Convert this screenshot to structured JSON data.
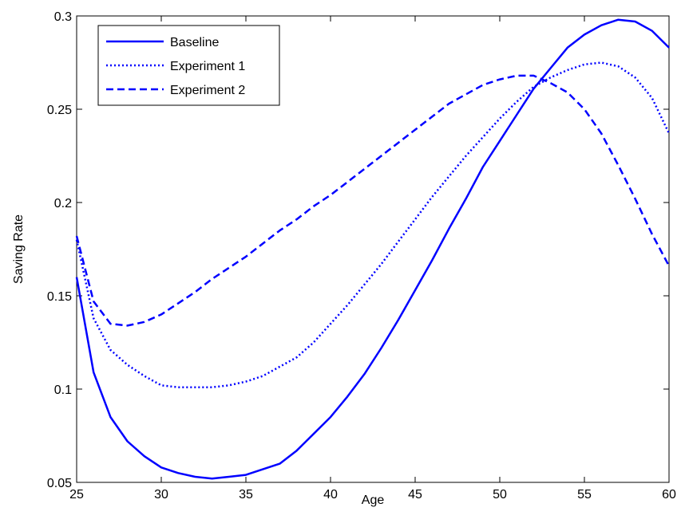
{
  "chart_data": {
    "type": "line",
    "title": "",
    "xlabel": "Age",
    "ylabel": "Saving Rate",
    "xlim": [
      25,
      60
    ],
    "ylim": [
      0.05,
      0.3
    ],
    "xticks": [
      25,
      30,
      35,
      40,
      45,
      50,
      55,
      60
    ],
    "xtick_labels": [
      "25",
      "30",
      "35",
      "40",
      "45",
      "50",
      "55",
      "60"
    ],
    "yticks": [
      0.05,
      0.1,
      0.15,
      0.2,
      0.25,
      0.3
    ],
    "ytick_labels": [
      "0.05",
      "0.1",
      "0.15",
      "0.2",
      "0.25",
      "0.3"
    ],
    "grid": false,
    "legend_position": "top-left",
    "line_color": "#0000ff",
    "x": [
      25,
      26,
      27,
      28,
      29,
      30,
      31,
      32,
      33,
      34,
      35,
      36,
      37,
      38,
      39,
      40,
      41,
      42,
      43,
      44,
      45,
      46,
      47,
      48,
      49,
      50,
      51,
      52,
      53,
      54,
      55,
      56,
      57,
      58,
      59,
      60
    ],
    "series": [
      {
        "name": "Baseline",
        "style": "solid",
        "values": [
          0.16,
          0.109,
          0.085,
          0.072,
          0.064,
          0.058,
          0.055,
          0.053,
          0.052,
          0.053,
          0.054,
          0.057,
          0.06,
          0.067,
          0.076,
          0.085,
          0.096,
          0.108,
          0.122,
          0.137,
          0.153,
          0.169,
          0.186,
          0.202,
          0.219,
          0.233,
          0.247,
          0.261,
          0.272,
          0.283,
          0.29,
          0.295,
          0.298,
          0.297,
          0.292,
          0.283
        ]
      },
      {
        "name": "Experiment 1",
        "style": "dotted",
        "values": [
          0.18,
          0.138,
          0.121,
          0.113,
          0.107,
          0.102,
          0.101,
          0.101,
          0.101,
          0.102,
          0.104,
          0.107,
          0.112,
          0.117,
          0.125,
          0.135,
          0.145,
          0.156,
          0.167,
          0.179,
          0.191,
          0.203,
          0.214,
          0.225,
          0.235,
          0.245,
          0.254,
          0.262,
          0.267,
          0.271,
          0.274,
          0.275,
          0.273,
          0.267,
          0.256,
          0.237
        ]
      },
      {
        "name": "Experiment 2",
        "style": "dashed",
        "values": [
          0.182,
          0.147,
          0.135,
          0.134,
          0.136,
          0.14,
          0.146,
          0.152,
          0.159,
          0.165,
          0.171,
          0.178,
          0.185,
          0.191,
          0.198,
          0.204,
          0.211,
          0.218,
          0.225,
          0.232,
          0.239,
          0.246,
          0.253,
          0.258,
          0.263,
          0.266,
          0.268,
          0.268,
          0.264,
          0.259,
          0.25,
          0.237,
          0.22,
          0.202,
          0.183,
          0.166
        ]
      }
    ]
  }
}
